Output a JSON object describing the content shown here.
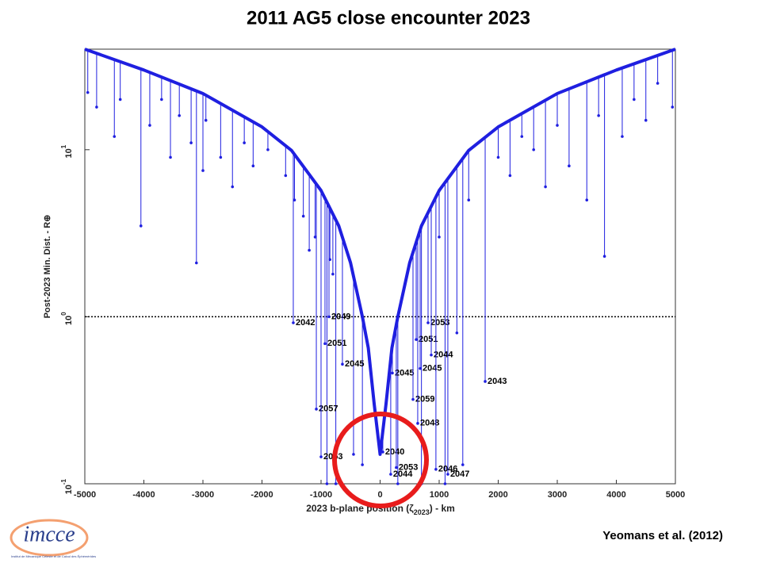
{
  "chart_data": {
    "type": "scatter",
    "title": "2011 AG5 close encounter 2023",
    "ylabel": "Post-2023 Min. Dist. - R⊕",
    "xlabel": {
      "text": "2023 b-plane position (ζ",
      "subscript": "2023",
      "suffix": ") - km"
    },
    "credit": "Yeomans et al. (2012)",
    "logo": {
      "text": "imcce",
      "caption": "Institut de Mécanique Céleste et de Calcul des Éphémérides"
    },
    "log_y": true,
    "color": "#1f1fe0",
    "xlim": [
      -5000,
      5000
    ],
    "ylim": [
      0.1,
      40
    ],
    "xticks": [
      -5000,
      -4000,
      -3000,
      -2000,
      -1000,
      0,
      1000,
      2000,
      3000,
      4000,
      5000
    ],
    "yticks": [
      {
        "value": 0.1,
        "label": "10",
        "exponent": "-1"
      },
      {
        "value": 1,
        "label": "10",
        "exponent": "0"
      },
      {
        "value": 10,
        "label": "10",
        "exponent": "1"
      }
    ],
    "reference_y": 1,
    "envelope": {
      "x": [
        -5000,
        -4000,
        -3000,
        -2000,
        -1500,
        -1000,
        -700,
        -500,
        -300,
        -200,
        -100,
        0,
        100,
        200,
        300,
        500,
        700,
        1000,
        1500,
        2000,
        3000,
        4000,
        5000
      ],
      "values": [
        40,
        30,
        21.7,
        13.7,
        9.9,
        5.7,
        3.5,
        2.1,
        1.0,
        0.65,
        0.3,
        0.15,
        0.3,
        0.65,
        1.0,
        2.1,
        3.5,
        5.7,
        9.9,
        13.7,
        21.7,
        30,
        40
      ]
    },
    "keyholes": {
      "x": [
        -1470,
        -866,
        -933,
        -638,
        -1080,
        -1000,
        812,
        611,
        866,
        678,
        208,
        557,
        1779,
        637,
        46,
        274,
        180,
        945,
        1147
      ],
      "values": [
        0.92,
        1.0,
        0.69,
        0.52,
        0.28,
        0.145,
        0.92,
        0.73,
        0.59,
        0.49,
        0.46,
        0.32,
        0.41,
        0.23,
        0.155,
        0.125,
        0.114,
        0.122,
        0.114
      ],
      "labels": [
        "2042",
        "2049",
        "2051",
        "2045",
        "2057",
        "2053",
        "2053",
        "2051",
        "2044",
        "2045",
        "2045",
        "2059",
        "2043",
        "2048",
        "2040",
        "2053",
        "2044",
        "2046",
        "2047"
      ]
    },
    "spikes": {
      "x": [
        -4950,
        -4800,
        -4500,
        -4400,
        -4050,
        -3900,
        -3700,
        -3550,
        -3400,
        -3200,
        -3110,
        -3000,
        -2950,
        -2700,
        -2500,
        -2300,
        -2150,
        -1900,
        -1600,
        -1450,
        -1300,
        -1200,
        -1100,
        -900,
        -850,
        -800,
        -750,
        -450,
        -300,
        300,
        700,
        1000,
        1100,
        1300,
        1400,
        1500,
        2000,
        2200,
        2400,
        2600,
        2800,
        3000,
        3200,
        3500,
        3700,
        3800,
        4100,
        4300,
        4500,
        4700,
        4950
      ],
      "values": [
        22,
        18,
        12,
        20,
        3.5,
        14,
        20,
        9,
        16,
        11,
        2.1,
        7.5,
        15,
        9,
        6,
        11,
        8,
        10,
        7,
        5,
        4,
        2.5,
        3,
        0.1,
        2.2,
        1.8,
        0.1,
        0.15,
        0.13,
        0.1,
        0.1,
        3,
        0.1,
        0.8,
        0.13,
        5,
        9,
        7,
        12,
        10,
        6,
        14,
        8,
        5,
        16,
        2.3,
        12,
        20,
        15,
        25,
        18
      ]
    }
  }
}
